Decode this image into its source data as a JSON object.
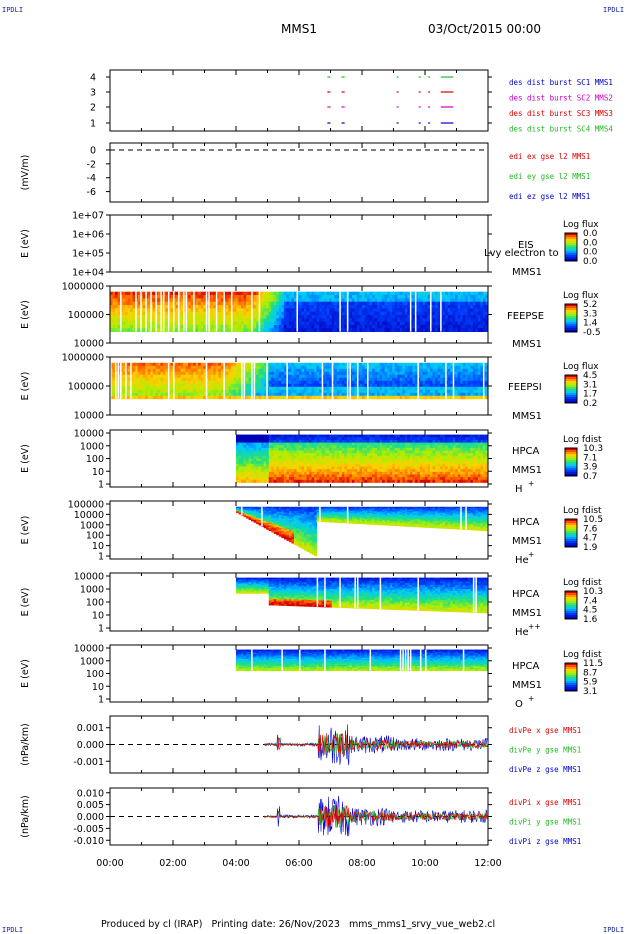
{
  "corner_label": "IPDLI",
  "header": {
    "spacecraft": "MMS1",
    "date": "03/Oct/2015 00:00"
  },
  "footer": "Produced by cl (IRAP)   Printing date: 26/Nov/2023   mms_mms1_srvy_vue_web2.cl",
  "colors": {
    "red": "#dd0000",
    "green": "#22bb22",
    "blue": "#0000cc",
    "magenta": "#cc00cc"
  },
  "chart_data": [
    {
      "type": "line",
      "panel": "burst",
      "yticks": [
        "4",
        "3",
        "2",
        "1"
      ],
      "ylim": [
        0.5,
        4.5
      ],
      "legend": [
        {
          "text": "des dist burst SC1 MMS1",
          "color": "#0000cc"
        },
        {
          "text": "des dist burst SC2 MMS2",
          "color": "#cc00cc"
        },
        {
          "text": "des dist burst SC3 MMS3",
          "color": "#dd0000"
        },
        {
          "text": "des dist burst SC4 MMS4",
          "color": "#22bb22"
        }
      ],
      "segments_hours": [
        [
          6.9,
          7.0
        ],
        [
          7.35,
          7.45
        ],
        [
          9.1,
          9.15
        ],
        [
          9.8,
          9.85
        ],
        [
          10.1,
          10.15
        ],
        [
          10.5,
          10.9
        ]
      ]
    },
    {
      "type": "line",
      "panel": "edi",
      "ylabel": "(mV/m)",
      "yticks": [
        "0",
        "-2",
        "-4",
        "-6"
      ],
      "ylim": [
        -7.5,
        1
      ],
      "legend": [
        {
          "text": "edi ex gse l2 MMS1",
          "color": "#dd0000"
        },
        {
          "text": "edi ey gse l2 MMS1",
          "color": "#22bb22"
        },
        {
          "text": "edi ez gse l2 MMS1",
          "color": "#0000cc"
        }
      ]
    },
    {
      "type": "heatmap",
      "panel": "eis",
      "ylabel": "E (eV)",
      "yticks": [
        "1e+07",
        "1e+06",
        "1e+05",
        "1e+04"
      ],
      "label": "EIS",
      "overlay": "Lvy electron to",
      "spacecraft": "MMS1",
      "colorbar": {
        "title": "Log flux",
        "ticks": [
          "0.0",
          "0.0",
          "0.0",
          "0.0"
        ]
      }
    },
    {
      "type": "heatmap",
      "panel": "feepse",
      "ylabel": "E (eV)",
      "yticks": [
        "1000000",
        "100000",
        "10000"
      ],
      "label": "FEEPSE",
      "spacecraft": "MMS1",
      "colorbar": {
        "title": "Log flux",
        "ticks": [
          "5.2",
          "3.3",
          "1.4",
          "-0.5"
        ]
      }
    },
    {
      "type": "heatmap",
      "panel": "feepsi",
      "ylabel": "E (eV)",
      "yticks": [
        "1000000",
        "100000",
        "10000"
      ],
      "label": "FEEPSI",
      "spacecraft": "MMS1",
      "colorbar": {
        "title": "Log flux",
        "ticks": [
          "4.5",
          "3.1",
          "1.7",
          "0.2"
        ]
      }
    },
    {
      "type": "heatmap",
      "panel": "hpca-h",
      "ylabel": "E (eV)",
      "yticks": [
        "10000",
        "1000",
        "100",
        "10",
        "1"
      ],
      "label": "HPCA",
      "spacecraft": "MMS1",
      "species": "H",
      "charge": "+",
      "colorbar": {
        "title": "Log fdist",
        "ticks": [
          "10.3",
          "7.1",
          "3.9",
          "0.7"
        ]
      }
    },
    {
      "type": "heatmap",
      "panel": "hpca-he",
      "ylabel": "E (eV)",
      "yticks": [
        "100000",
        "10000",
        "1000",
        "100",
        "10",
        "1"
      ],
      "label": "HPCA",
      "spacecraft": "MMS1",
      "species": "He",
      "charge": "+",
      "colorbar": {
        "title": "Log fdist",
        "ticks": [
          "10.5",
          "7.6",
          "4.7",
          "1.9"
        ]
      }
    },
    {
      "type": "heatmap",
      "panel": "hpca-hepp",
      "ylabel": "E (eV)",
      "yticks": [
        "10000",
        "1000",
        "100",
        "10",
        "1"
      ],
      "label": "HPCA",
      "spacecraft": "MMS1",
      "species": "He",
      "charge": "++",
      "colorbar": {
        "title": "Log fdist",
        "ticks": [
          "10.3",
          "7.4",
          "4.5",
          "1.6"
        ]
      }
    },
    {
      "type": "heatmap",
      "panel": "hpca-o",
      "ylabel": "E (eV)",
      "yticks": [
        "10000",
        "1000",
        "100",
        "10",
        "1"
      ],
      "label": "HPCA",
      "spacecraft": "MMS1",
      "species": "O",
      "charge": "+",
      "colorbar": {
        "title": "Log fdist",
        "ticks": [
          "11.5",
          "8.7",
          "5.9",
          "3.1"
        ]
      }
    },
    {
      "type": "line",
      "panel": "divpe",
      "ylabel": "(nPa/km)",
      "yticks": [
        "0.001",
        "0.000",
        "-0.001"
      ],
      "ylim": [
        -0.0017,
        0.0017
      ],
      "legend": [
        {
          "text": "divPe x gse MMS1",
          "color": "#dd0000"
        },
        {
          "text": "divPe y gse MMS1",
          "color": "#22bb22"
        },
        {
          "text": "divPe z gse MMS1",
          "color": "#0000cc"
        }
      ]
    },
    {
      "type": "line",
      "panel": "divpi",
      "ylabel": "(nPa/km)",
      "yticks": [
        "0.010",
        "0.005",
        "0.000",
        "-0.005",
        "-0.010"
      ],
      "ylim": [
        -0.012,
        0.012
      ],
      "legend": [
        {
          "text": "divPi x gse MMS1",
          "color": "#dd0000"
        },
        {
          "text": "divPi y gse MMS1",
          "color": "#22bb22"
        },
        {
          "text": "divPi z gse MMS1",
          "color": "#0000cc"
        }
      ]
    }
  ],
  "x_axis": {
    "ticks": [
      "00:00",
      "02:00",
      "04:00",
      "06:00",
      "08:00",
      "10:00",
      "12:00"
    ],
    "xlim_hours": [
      0,
      12
    ]
  }
}
